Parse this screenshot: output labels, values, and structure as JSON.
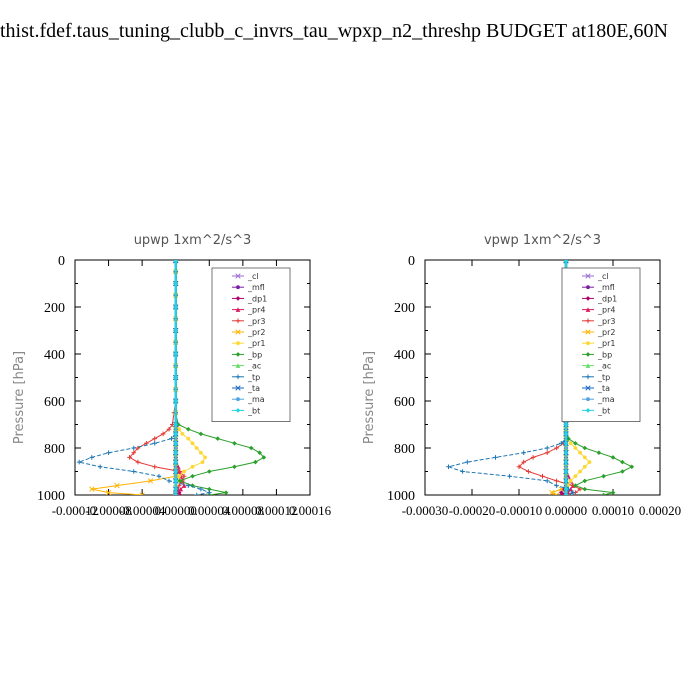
{
  "page_title": "thist.fdef.taus_tuning_clubb_c_invrs_tau_wpxp_n2_threshp  BUDGET at180E,60N",
  "chart_data": [
    {
      "type": "line",
      "title": "upwp   1xm^2/s^3",
      "ylabel": "Pressure [hPa]",
      "xlabel": "",
      "ylim": [
        1000,
        0
      ],
      "yticks": [
        0,
        200,
        400,
        600,
        800,
        1000
      ],
      "xlim": [
        -0.00012,
        0.00016
      ],
      "xticks": [
        -0.00012,
        -8e-05,
        -4e-05,
        0.0,
        4e-05,
        8e-05,
        0.00012,
        0.00016
      ],
      "xtick_labels": [
        "-0.00012",
        "-0.00008",
        "-0.00004",
        "0.00000",
        "0.00004",
        "0.00008",
        "0.00012",
        "0.00016"
      ],
      "grid": false,
      "legend_position": "top-right",
      "levels": [
        3,
        50,
        100,
        150,
        200,
        250,
        300,
        350,
        400,
        450,
        500,
        550,
        600,
        650,
        700,
        720,
        740,
        760,
        780,
        800,
        820,
        840,
        860,
        880,
        900,
        920,
        940,
        960,
        975,
        990,
        1000
      ],
      "series": [
        {
          "name": "_cl",
          "color": "#9a6dd6",
          "values": [
            0,
            0,
            0,
            0,
            0,
            0,
            0,
            0,
            0,
            0,
            0,
            0,
            0,
            0,
            0,
            0,
            0,
            0,
            0,
            0,
            0,
            0,
            0,
            0,
            0,
            0,
            0,
            0,
            0,
            0,
            0
          ]
        },
        {
          "name": "_mfl",
          "color": "#7a1fa2",
          "values": [
            0,
            0,
            0,
            0,
            0,
            0,
            0,
            0,
            0,
            0,
            0,
            0,
            0,
            0,
            0,
            0,
            0,
            0,
            0,
            0,
            0,
            0,
            0,
            0,
            0,
            0,
            0,
            0,
            0,
            0,
            0
          ]
        },
        {
          "name": "_dp1",
          "color": "#b0006a",
          "values": [
            0,
            0,
            0,
            0,
            0,
            0,
            0,
            0,
            0,
            0,
            0,
            0,
            0,
            0,
            0,
            0,
            0,
            0,
            0,
            0,
            0,
            0,
            0,
            0,
            0,
            0,
            0,
            0,
            2e-06,
            4e-06,
            5e-06
          ]
        },
        {
          "name": "_pr4",
          "color": "#d81b60",
          "values": [
            0,
            0,
            0,
            0,
            0,
            0,
            0,
            0,
            0,
            0,
            0,
            0,
            0,
            0,
            0,
            0,
            0,
            0,
            0,
            0,
            0,
            0,
            0,
            3e-06,
            4e-06,
            6e-06,
            8e-06,
            1e-05,
            6e-06,
            2e-06,
            0
          ]
        },
        {
          "name": "_pr3",
          "color": "#e53935",
          "values": [
            0,
            0,
            0,
            0,
            0,
            0,
            0,
            0,
            0,
            0,
            0,
            0,
            0,
            -2e-06,
            -4e-06,
            -8e-06,
            -1.5e-05,
            -2.5e-05,
            -3.5e-05,
            -4.5e-05,
            -5e-05,
            -5.5e-05,
            -4.5e-05,
            -2.5e-05,
            5e-06,
            1e-05,
            8e-06,
            4e-06,
            2e-06,
            0,
            0
          ]
        },
        {
          "name": "_pr2",
          "color": "#ffb300",
          "values": [
            0,
            0,
            0,
            0,
            0,
            0,
            0,
            0,
            0,
            0,
            0,
            0,
            0,
            0,
            0,
            0,
            0,
            0,
            0,
            0,
            0,
            0,
            0,
            0,
            0,
            0,
            -3e-05,
            -7e-05,
            -0.0001,
            -8e-05,
            -4e-05
          ]
        },
        {
          "name": "_pr1",
          "color": "#fdd835",
          "values": [
            0,
            0,
            0,
            0,
            0,
            0,
            0,
            0,
            0,
            0,
            0,
            0,
            0,
            0,
            2e-06,
            4e-06,
            8e-06,
            1.5e-05,
            2e-05,
            2.5e-05,
            3e-05,
            3.5e-05,
            3.2e-05,
            2e-05,
            1e-05,
            4e-06,
            2e-06,
            0,
            0,
            0,
            0
          ]
        },
        {
          "name": "_bp",
          "color": "#2ca02c",
          "values": [
            0,
            0,
            0,
            0,
            0,
            0,
            0,
            0,
            0,
            0,
            0,
            0,
            0,
            0,
            3e-06,
            1.5e-05,
            3e-05,
            5e-05,
            7e-05,
            9e-05,
            0.0001,
            0.000105,
            9.5e-05,
            7e-05,
            4e-05,
            2e-05,
            5e-06,
            2e-05,
            4e-05,
            6e-05,
            4e-05
          ]
        },
        {
          "name": "_ac",
          "color": "#66dd66",
          "values": [
            0,
            0,
            0,
            0,
            0,
            0,
            0,
            0,
            0,
            0,
            0,
            0,
            0,
            0,
            0,
            0,
            0,
            0,
            0,
            0,
            0,
            0,
            0,
            0,
            0,
            0,
            0,
            0,
            0,
            0,
            0
          ]
        },
        {
          "name": "_tp",
          "color": "#1f77b4",
          "values": [
            0,
            0,
            0,
            0,
            0,
            0,
            0,
            0,
            0,
            0,
            0,
            0,
            0,
            0,
            0,
            0,
            0,
            -5e-06,
            -2.5e-05,
            -5e-05,
            -8e-05,
            -0.0001,
            -0.000115,
            -9e-05,
            -5e-05,
            -2e-05,
            -8e-06,
            1.5e-05,
            3e-05,
            4e-05,
            2.5e-05
          ]
        },
        {
          "name": "_ta",
          "color": "#1565c0",
          "values": [
            0,
            0,
            0,
            0,
            0,
            0,
            0,
            0,
            0,
            0,
            0,
            0,
            0,
            0,
            0,
            0,
            0,
            0,
            0,
            0,
            0,
            0,
            0,
            0,
            0,
            0,
            0,
            0,
            0,
            0,
            0
          ]
        },
        {
          "name": "_ma",
          "color": "#4fa3e0",
          "values": [
            0,
            0,
            0,
            0,
            0,
            0,
            0,
            0,
            0,
            0,
            0,
            0,
            0,
            0,
            0,
            0,
            0,
            0,
            0,
            0,
            0,
            0,
            0,
            0,
            0,
            0,
            0,
            0,
            0,
            0,
            0
          ]
        },
        {
          "name": "_bt",
          "color": "#22d3e6",
          "values": [
            0,
            0,
            0,
            0,
            0,
            0,
            0,
            0,
            0,
            0,
            0,
            0,
            0,
            0,
            0,
            0,
            0,
            0,
            0,
            0,
            0,
            0,
            0,
            0,
            0,
            0,
            0,
            0,
            0,
            0,
            0
          ]
        }
      ]
    },
    {
      "type": "line",
      "title": "vpwp   1xm^2/s^3",
      "ylabel": "Pressure [hPa]",
      "xlabel": "",
      "ylim": [
        1000,
        0
      ],
      "yticks": [
        0,
        200,
        400,
        600,
        800,
        1000
      ],
      "xlim": [
        -0.0003,
        0.0002
      ],
      "xticks": [
        -0.0003,
        -0.0002,
        -0.0001,
        0.0,
        0.0001,
        0.0002
      ],
      "xtick_labels": [
        "-0.00030",
        "-0.00020",
        "-0.00010",
        "0.00000",
        "0.00010",
        "0.00020"
      ],
      "grid": false,
      "legend_position": "top-right",
      "levels": [
        3,
        50,
        100,
        150,
        200,
        250,
        300,
        350,
        400,
        450,
        500,
        550,
        600,
        650,
        700,
        720,
        740,
        760,
        780,
        800,
        820,
        840,
        860,
        880,
        900,
        920,
        940,
        960,
        975,
        990,
        1000
      ],
      "series": [
        {
          "name": "_cl",
          "color": "#9a6dd6",
          "values": [
            0,
            0,
            0,
            0,
            0,
            0,
            0,
            0,
            0,
            0,
            0,
            0,
            0,
            0,
            0,
            0,
            0,
            0,
            0,
            0,
            0,
            0,
            0,
            0,
            0,
            0,
            0,
            0,
            0,
            0,
            0
          ]
        },
        {
          "name": "_mfl",
          "color": "#7a1fa2",
          "values": [
            0,
            0,
            0,
            0,
            0,
            0,
            0,
            0,
            0,
            0,
            0,
            0,
            0,
            0,
            0,
            0,
            0,
            0,
            0,
            0,
            0,
            0,
            0,
            0,
            0,
            0,
            0,
            0,
            0,
            0,
            0
          ]
        },
        {
          "name": "_dp1",
          "color": "#b0006a",
          "values": [
            0,
            0,
            0,
            0,
            0,
            0,
            0,
            0,
            0,
            0,
            0,
            0,
            0,
            0,
            0,
            0,
            0,
            0,
            0,
            0,
            0,
            0,
            0,
            0,
            0,
            0,
            0,
            0,
            -5e-06,
            -1e-05,
            -6e-06
          ]
        },
        {
          "name": "_pr4",
          "color": "#d81b60",
          "values": [
            0,
            0,
            0,
            0,
            0,
            0,
            0,
            0,
            0,
            0,
            0,
            0,
            0,
            0,
            0,
            0,
            0,
            0,
            0,
            0,
            0,
            0,
            0,
            0,
            0,
            5e-06,
            1e-05,
            1.5e-05,
            1e-05,
            5e-06,
            0
          ]
        },
        {
          "name": "_pr3",
          "color": "#e53935",
          "values": [
            0,
            0,
            0,
            0,
            0,
            0,
            0,
            0,
            0,
            0,
            0,
            0,
            0,
            0,
            0,
            0,
            0,
            0,
            -5e-06,
            -2e-05,
            -4e-05,
            -7e-05,
            -9e-05,
            -0.0001,
            -8e-05,
            -5e-05,
            -2e-05,
            1.5e-05,
            3e-05,
            2e-05,
            0
          ]
        },
        {
          "name": "_pr2",
          "color": "#ffb300",
          "values": [
            0,
            0,
            0,
            0,
            0,
            0,
            0,
            0,
            0,
            0,
            0,
            0,
            0,
            0,
            0,
            0,
            0,
            0,
            0,
            0,
            0,
            0,
            0,
            0,
            0,
            0,
            0,
            0,
            -1e-05,
            -3e-05,
            -2e-05
          ]
        },
        {
          "name": "_pr1",
          "color": "#fdd835",
          "values": [
            0,
            0,
            0,
            0,
            0,
            0,
            0,
            0,
            0,
            0,
            0,
            0,
            0,
            0,
            0,
            0,
            0,
            4e-06,
            1e-05,
            2e-05,
            3e-05,
            4e-05,
            5e-05,
            4e-05,
            3e-05,
            2e-05,
            1e-05,
            4e-06,
            0,
            0,
            0
          ]
        },
        {
          "name": "_bp",
          "color": "#2ca02c",
          "values": [
            0,
            0,
            0,
            0,
            0,
            0,
            0,
            0,
            0,
            0,
            0,
            0,
            0,
            0,
            0,
            0,
            0,
            5e-06,
            2e-05,
            4e-05,
            7e-05,
            0.0001,
            0.00012,
            0.00014,
            0.00012,
            8e-05,
            4e-05,
            2e-05,
            4e-05,
            0.0001,
            8e-05
          ]
        },
        {
          "name": "_ac",
          "color": "#66dd66",
          "values": [
            0,
            0,
            0,
            0,
            0,
            0,
            0,
            0,
            0,
            0,
            0,
            0,
            0,
            0,
            0,
            0,
            0,
            0,
            0,
            0,
            0,
            0,
            0,
            0,
            0,
            0,
            0,
            0,
            0,
            0,
            0
          ]
        },
        {
          "name": "_tp",
          "color": "#1f77b4",
          "values": [
            0,
            0,
            0,
            0,
            0,
            0,
            0,
            0,
            0,
            0,
            0,
            0,
            0,
            0,
            0,
            0,
            0,
            0,
            -1e-05,
            -4e-05,
            -9e-05,
            -0.00015,
            -0.00021,
            -0.00025,
            -0.00022,
            -0.00012,
            -4e-05,
            -2e-05,
            5e-06,
            1.5e-05,
            1e-05
          ]
        },
        {
          "name": "_ta",
          "color": "#1565c0",
          "values": [
            0,
            0,
            0,
            0,
            0,
            0,
            0,
            0,
            0,
            0,
            0,
            0,
            0,
            0,
            0,
            0,
            0,
            0,
            0,
            0,
            0,
            0,
            0,
            0,
            0,
            0,
            0,
            0,
            0,
            0,
            0
          ]
        },
        {
          "name": "_ma",
          "color": "#4fa3e0",
          "values": [
            0,
            0,
            0,
            0,
            0,
            0,
            0,
            0,
            0,
            0,
            0,
            0,
            0,
            0,
            0,
            0,
            0,
            0,
            0,
            0,
            0,
            0,
            0,
            0,
            0,
            0,
            0,
            0,
            0,
            0,
            0
          ]
        },
        {
          "name": "_bt",
          "color": "#22d3e6",
          "values": [
            0,
            0,
            0,
            0,
            0,
            0,
            0,
            0,
            0,
            0,
            0,
            0,
            0,
            0,
            0,
            0,
            0,
            0,
            0,
            0,
            0,
            0,
            0,
            0,
            0,
            0,
            0,
            0,
            0,
            0,
            0
          ]
        }
      ]
    }
  ]
}
